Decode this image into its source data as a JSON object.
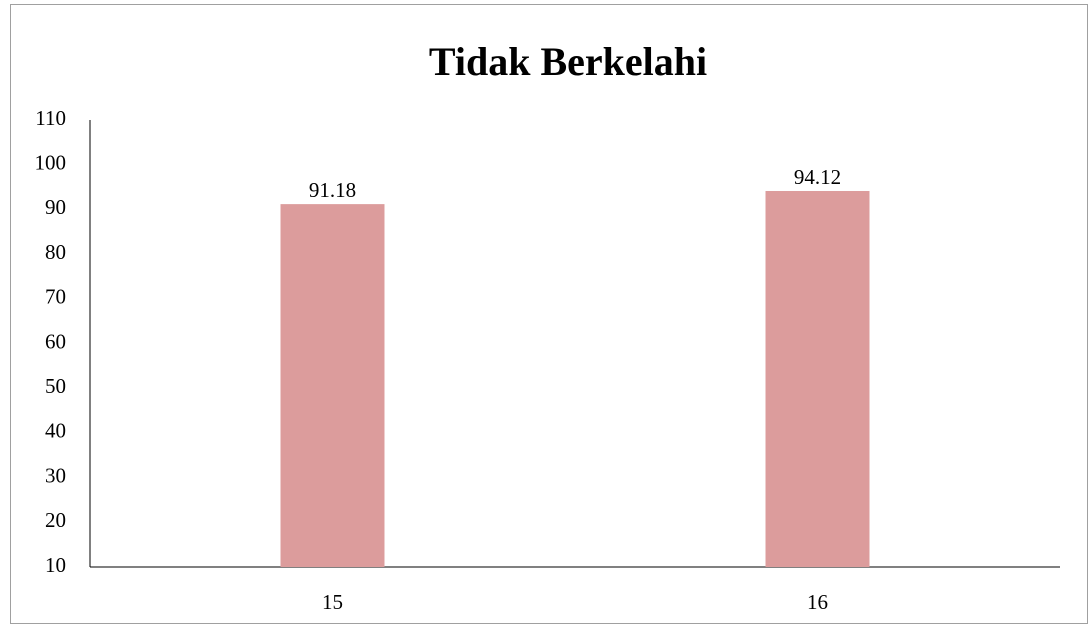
{
  "chart_data": {
    "type": "bar",
    "title": "Tidak Berkelahi",
    "categories": [
      "15",
      "16"
    ],
    "values": [
      91.18,
      94.12
    ],
    "color": "#dc9c9c",
    "ylim": [
      10,
      110
    ],
    "yticks": [
      10,
      20,
      30,
      40,
      50,
      60,
      70,
      80,
      90,
      100,
      110
    ],
    "grid": false
  }
}
